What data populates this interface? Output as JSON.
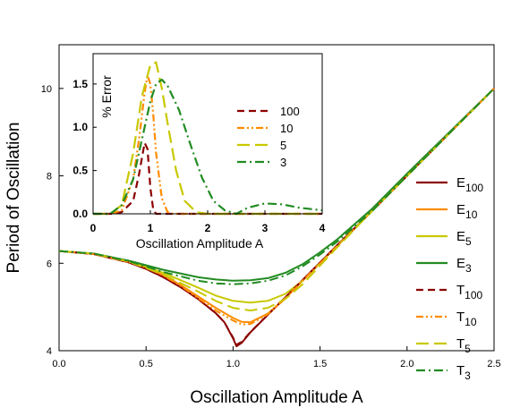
{
  "chart_data": [
    {
      "type": "line",
      "xlabel": "Oscillation Amplitude A",
      "ylabel": "Period of Oscillation",
      "xlim": [
        0,
        2.5
      ],
      "ylim": [
        4,
        11
      ],
      "xticks": [
        "0.0",
        "0.5",
        "1.0",
        "1.5",
        "2.0",
        "2.5"
      ],
      "yticks": [
        "4",
        "6",
        "8",
        "10"
      ],
      "legend_position": "right",
      "series": [
        {
          "name": "E",
          "sub": "100",
          "color": "#8b0000",
          "style": "solid",
          "x": [
            0,
            0.2,
            0.4,
            0.5,
            0.6,
            0.7,
            0.8,
            0.9,
            0.95,
            1.0,
            1.02,
            1.05,
            1.1,
            1.2,
            1.4,
            1.6,
            1.8,
            2.0,
            2.2,
            2.5
          ],
          "y": [
            6.28,
            6.21,
            6.02,
            5.87,
            5.68,
            5.45,
            5.18,
            4.86,
            4.65,
            4.28,
            4.1,
            4.18,
            4.42,
            4.82,
            5.62,
            6.42,
            7.2,
            8.0,
            8.8,
            10.0
          ]
        },
        {
          "name": "E",
          "sub": "10",
          "color": "#ff8c00",
          "style": "solid",
          "x": [
            0,
            0.2,
            0.4,
            0.5,
            0.6,
            0.7,
            0.8,
            0.9,
            1.0,
            1.05,
            1.1,
            1.2,
            1.3,
            1.4,
            1.6,
            1.8,
            2.0,
            2.2,
            2.5
          ],
          "y": [
            6.28,
            6.21,
            6.03,
            5.9,
            5.73,
            5.5,
            5.24,
            4.98,
            4.75,
            4.66,
            4.65,
            4.85,
            5.2,
            5.6,
            6.4,
            7.2,
            8.0,
            8.8,
            10.0
          ]
        },
        {
          "name": "E",
          "sub": "5",
          "color": "#c8c800",
          "style": "solid",
          "x": [
            0,
            0.2,
            0.4,
            0.6,
            0.8,
            0.9,
            1.0,
            1.1,
            1.2,
            1.3,
            1.4,
            1.6,
            1.8,
            2.0,
            2.2,
            2.5
          ],
          "y": [
            6.28,
            6.22,
            6.05,
            5.78,
            5.44,
            5.26,
            5.14,
            5.1,
            5.14,
            5.3,
            5.6,
            6.4,
            7.2,
            8.0,
            8.8,
            10.0
          ]
        },
        {
          "name": "E",
          "sub": "3",
          "color": "#228b22",
          "style": "solid",
          "x": [
            0,
            0.2,
            0.4,
            0.6,
            0.8,
            0.9,
            1.0,
            1.1,
            1.2,
            1.3,
            1.4,
            1.5,
            1.6,
            1.8,
            2.0,
            2.2,
            2.5
          ],
          "y": [
            6.28,
            6.22,
            6.06,
            5.85,
            5.68,
            5.63,
            5.6,
            5.61,
            5.66,
            5.78,
            5.98,
            6.25,
            6.55,
            7.25,
            8.05,
            8.83,
            10.0
          ]
        },
        {
          "name": "T",
          "sub": "100",
          "color": "#8b0000",
          "style": "dash",
          "x": [
            0,
            0.2,
            0.4,
            0.5,
            0.6,
            0.7,
            0.8,
            0.9,
            0.95,
            1.0,
            1.02,
            1.05,
            1.1,
            1.2,
            1.4,
            1.6,
            1.8,
            2.0,
            2.2,
            2.5
          ],
          "y": [
            6.28,
            6.21,
            6.02,
            5.87,
            5.68,
            5.45,
            5.18,
            4.86,
            4.65,
            4.3,
            4.14,
            4.2,
            4.43,
            4.82,
            5.62,
            6.42,
            7.2,
            8.0,
            8.8,
            10.0
          ]
        },
        {
          "name": "T",
          "sub": "10",
          "color": "#ff8c00",
          "style": "dashdotdot",
          "x": [
            0,
            0.2,
            0.4,
            0.5,
            0.6,
            0.7,
            0.8,
            0.9,
            1.0,
            1.05,
            1.1,
            1.2,
            1.3,
            1.4,
            1.6,
            1.8,
            2.0,
            2.2,
            2.5
          ],
          "y": [
            6.28,
            6.21,
            6.03,
            5.9,
            5.72,
            5.48,
            5.2,
            4.92,
            4.69,
            4.6,
            4.61,
            4.83,
            5.19,
            5.6,
            6.4,
            7.2,
            8.0,
            8.8,
            10.0
          ]
        },
        {
          "name": "T",
          "sub": "5",
          "color": "#c8c800",
          "style": "longdash",
          "x": [
            0,
            0.2,
            0.4,
            0.6,
            0.8,
            0.9,
            1.0,
            1.1,
            1.2,
            1.3,
            1.4,
            1.6,
            1.8,
            2.0,
            2.2,
            2.5
          ],
          "y": [
            6.28,
            6.22,
            6.04,
            5.74,
            5.35,
            5.14,
            4.98,
            4.92,
            4.98,
            5.18,
            5.52,
            6.37,
            7.2,
            8.0,
            8.8,
            10.0
          ]
        },
        {
          "name": "T",
          "sub": "3",
          "color": "#228b22",
          "style": "dashdot",
          "x": [
            0,
            0.2,
            0.4,
            0.6,
            0.8,
            0.9,
            1.0,
            1.1,
            1.2,
            1.3,
            1.4,
            1.5,
            1.6,
            1.8,
            2.0,
            2.2,
            2.5
          ],
          "y": [
            6.28,
            6.22,
            6.05,
            5.8,
            5.6,
            5.54,
            5.52,
            5.54,
            5.6,
            5.72,
            5.93,
            6.2,
            6.5,
            7.2,
            8.0,
            8.8,
            10.0
          ]
        }
      ]
    },
    {
      "type": "line",
      "xlabel": "Oscillation Amplitude A",
      "ylabel": "% Error",
      "xlim": [
        0,
        4
      ],
      "ylim": [
        0,
        1.85
      ],
      "xticks": [
        "0",
        "1",
        "2",
        "3",
        "4"
      ],
      "yticks": [
        "0.0",
        "0.5",
        "1.0",
        "1.5"
      ],
      "legend_position": "right",
      "series": [
        {
          "name": "100",
          "color": "#8b0000",
          "style": "dash",
          "x": [
            0,
            0.3,
            0.5,
            0.7,
            0.8,
            0.9,
            0.95,
            1.0,
            1.05,
            1.1,
            1.2,
            4.0
          ],
          "y": [
            0,
            0.0,
            0.02,
            0.15,
            0.45,
            0.82,
            0.75,
            0.3,
            0.05,
            0.0,
            0.0,
            0.0
          ]
        },
        {
          "name": "10",
          "color": "#ff8c00",
          "style": "dashdotdot",
          "x": [
            0,
            0.3,
            0.5,
            0.7,
            0.8,
            0.9,
            0.95,
            1.0,
            1.05,
            1.1,
            1.2,
            1.3,
            1.4,
            4.0
          ],
          "y": [
            0,
            0.0,
            0.04,
            0.4,
            0.85,
            1.4,
            1.6,
            1.5,
            1.15,
            0.7,
            0.18,
            0.02,
            0.0,
            0.0
          ]
        },
        {
          "name": "5",
          "color": "#c8c800",
          "style": "longdash",
          "x": [
            0,
            0.3,
            0.5,
            0.7,
            0.85,
            1.0,
            1.1,
            1.2,
            1.3,
            1.45,
            1.6,
            1.8,
            2.0,
            4.0
          ],
          "y": [
            0,
            0.0,
            0.1,
            0.7,
            1.35,
            1.72,
            1.75,
            1.45,
            1.05,
            0.5,
            0.15,
            0.02,
            0.0,
            0.0
          ]
        },
        {
          "name": "3",
          "color": "#228b22",
          "style": "dashdot",
          "x": [
            0,
            0.3,
            0.5,
            0.7,
            0.9,
            1.0,
            1.1,
            1.2,
            1.3,
            1.5,
            1.7,
            1.9,
            2.1,
            2.3,
            2.5,
            2.7,
            3.0,
            3.3,
            3.6,
            4.0
          ],
          "y": [
            0,
            0.0,
            0.1,
            0.4,
            1.0,
            1.3,
            1.5,
            1.55,
            1.48,
            1.2,
            0.8,
            0.42,
            0.15,
            0.04,
            0.0,
            0.07,
            0.12,
            0.11,
            0.07,
            0.04
          ]
        }
      ]
    }
  ]
}
